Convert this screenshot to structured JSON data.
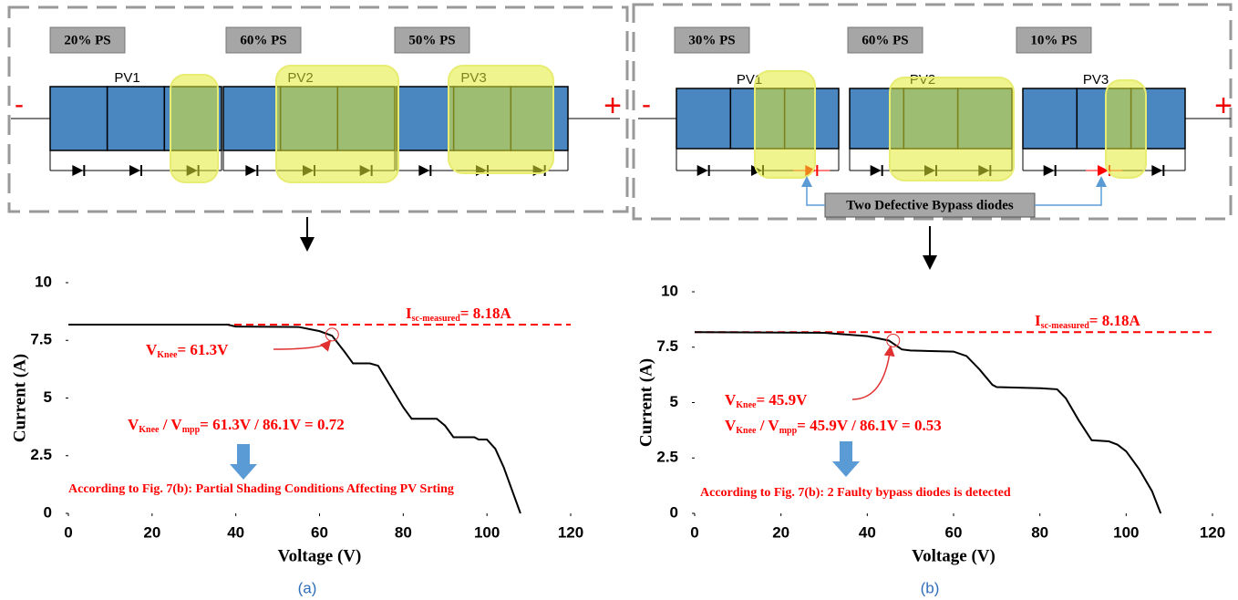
{
  "panels": [
    {
      "shading_labels": [
        "20% PS",
        "60% PS",
        "50% PS"
      ],
      "module_labels": [
        "PV1",
        "PV2",
        "PV3"
      ],
      "terminals": [
        "-",
        "+"
      ]
    },
    {
      "shading_labels": [
        "30% PS",
        "60% PS",
        "10% PS"
      ],
      "module_labels": [
        "PV1",
        "PV2",
        "PV3"
      ],
      "terminals": [
        "-",
        "+"
      ],
      "callout": "Two Defective Bypass diodes"
    }
  ],
  "captions": [
    "(a)",
    "(b)"
  ],
  "chart_data": [
    {
      "type": "line",
      "x_label": "Voltage (V)",
      "y_label": "Current (A)",
      "xlim": [
        0,
        120
      ],
      "ylim": [
        0,
        10
      ],
      "xticks": [
        0,
        20,
        40,
        60,
        80,
        100,
        120
      ],
      "yticks": [
        0,
        2.5,
        5,
        7.5,
        10
      ],
      "x": [
        0,
        38,
        40,
        55,
        60,
        63,
        66,
        68,
        72,
        74,
        76,
        80,
        82,
        88,
        90,
        92,
        97,
        98,
        100,
        102,
        104,
        106,
        108
      ],
      "series": [
        {
          "color": "#000000",
          "values": [
            8.18,
            8.18,
            8.1,
            8.08,
            7.9,
            7.7,
            7.0,
            6.5,
            6.5,
            6.4,
            5.8,
            4.6,
            4.1,
            4.1,
            3.8,
            3.3,
            3.3,
            3.2,
            3.2,
            2.8,
            2.0,
            1.0,
            0
          ]
        }
      ],
      "reference_line": {
        "value": 8.18,
        "color": "#ff0000"
      },
      "annotations": [
        {
          "parts": [
            "I",
            "sc-measured",
            "= 8.18A"
          ]
        },
        {
          "parts": [
            "V",
            "Knee",
            "= 61.3V"
          ]
        },
        {
          "parts": [
            "V",
            "Knee",
            " / V",
            "mpp",
            "= 61.3V / 86.1V = 0.72"
          ]
        },
        {
          "parts": [
            "According to Fig. 7(b): Partial Shading Conditions Affecting PV Srting"
          ]
        }
      ]
    },
    {
      "type": "line",
      "x_label": "Voltage (V)",
      "y_label": "Current (A)",
      "xlim": [
        0,
        120
      ],
      "ylim": [
        0,
        10
      ],
      "xticks": [
        0,
        20,
        40,
        60,
        80,
        100,
        120
      ],
      "yticks": [
        0,
        2.5,
        5,
        7.5,
        10
      ],
      "x": [
        0,
        30,
        40,
        45,
        48,
        50,
        60,
        63,
        66,
        69,
        70,
        80,
        84,
        86,
        89,
        92,
        96,
        98,
        100,
        103,
        106,
        108
      ],
      "series": [
        {
          "color": "#000000",
          "values": [
            8.18,
            8.15,
            8.0,
            7.8,
            7.4,
            7.35,
            7.3,
            7.1,
            6.5,
            5.8,
            5.7,
            5.65,
            5.6,
            5.2,
            4.2,
            3.3,
            3.25,
            3.1,
            2.8,
            2.0,
            1.0,
            0
          ]
        }
      ],
      "reference_line": {
        "value": 8.18,
        "color": "#ff0000"
      },
      "annotations": [
        {
          "parts": [
            "I",
            "sc-measured",
            "= 8.18A"
          ]
        },
        {
          "parts": [
            "V",
            "Knee",
            "= 45.9V"
          ]
        },
        {
          "parts": [
            "V",
            "Knee",
            " / V",
            "mpp",
            "= 45.9V / 86.1V = 0.53"
          ]
        },
        {
          "parts": [
            "According to Fig. 7(b): 2 Faulty bypass diodes is detected"
          ]
        }
      ]
    }
  ]
}
